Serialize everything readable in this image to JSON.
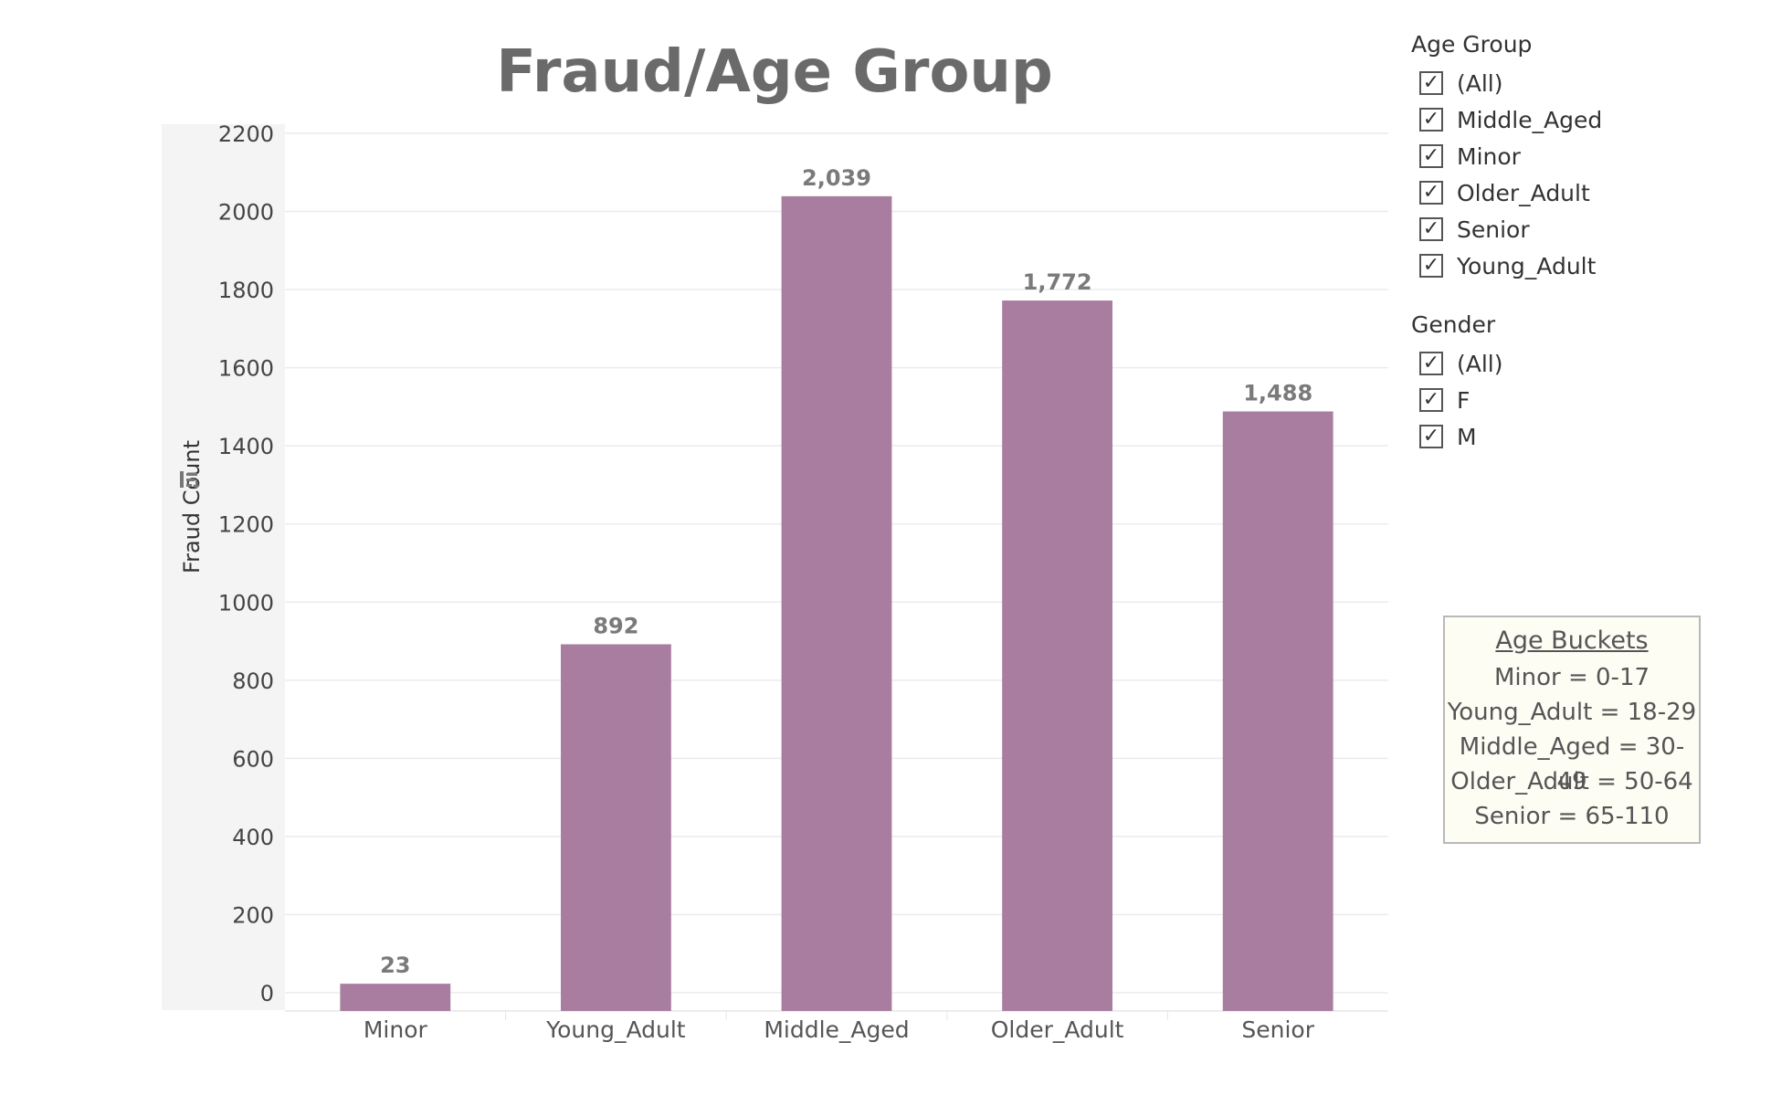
{
  "chart_data": {
    "type": "bar",
    "title": "Fraud/Age Group",
    "ylabel": "Fraud Count",
    "xlabel": "",
    "categories": [
      "Minor",
      "Young_Adult",
      "Middle_Aged",
      "Older_Adult",
      "Senior"
    ],
    "values": [
      23,
      892,
      2039,
      1772,
      1488
    ],
    "data_labels": [
      "23",
      "892",
      "2,039",
      "1,772",
      "1,488"
    ],
    "ylim": [
      0,
      2200
    ],
    "yticks": [
      "0",
      "200",
      "400",
      "600",
      "800",
      "1000",
      "1200",
      "1400",
      "1600",
      "1800",
      "2000",
      "2200"
    ],
    "bar_color": "#a87d9f",
    "grid": true
  },
  "filters": {
    "age_group": {
      "title": "Age Group",
      "items": [
        {
          "label": "(All)",
          "checked": true
        },
        {
          "label": "Middle_Aged",
          "checked": true
        },
        {
          "label": "Minor",
          "checked": true
        },
        {
          "label": "Older_Adult",
          "checked": true
        },
        {
          "label": "Senior",
          "checked": true
        },
        {
          "label": "Young_Adult",
          "checked": true
        }
      ]
    },
    "gender": {
      "title": "Gender",
      "items": [
        {
          "label": "(All)",
          "checked": true
        },
        {
          "label": "F",
          "checked": true
        },
        {
          "label": "M",
          "checked": true
        }
      ]
    }
  },
  "legend": {
    "title": "Age Buckets",
    "lines": [
      "Minor = 0-17",
      "Young_Adult = 18-29",
      "Middle_Aged = 30-49",
      "Older_Adult = 50-64",
      "Senior = 65-110"
    ]
  },
  "icons": {
    "sort": "sort-icon",
    "check": "check-icon"
  }
}
